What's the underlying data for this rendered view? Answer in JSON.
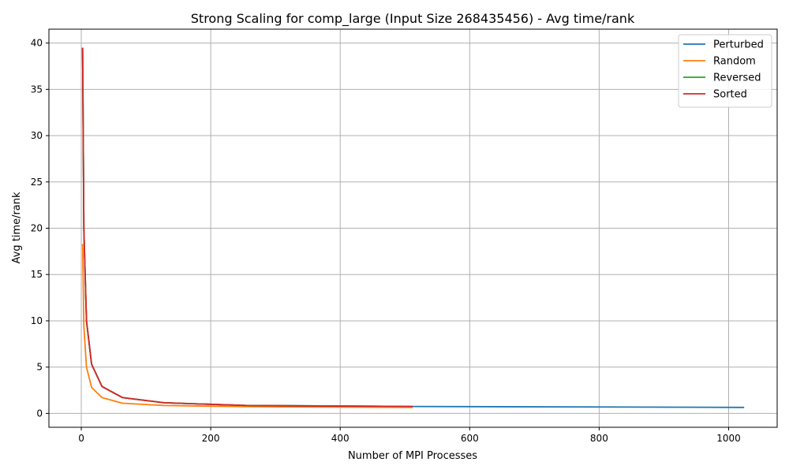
{
  "chart_data": {
    "type": "line",
    "title": "Strong Scaling for comp_large (Input Size 268435456) - Avg time/rank",
    "xlabel": "Number of MPI Processes",
    "ylabel": "Avg time/rank",
    "xlim": [
      -50,
      1075
    ],
    "ylim": [
      -1.5,
      41.5
    ],
    "xticks": [
      0,
      200,
      400,
      600,
      800,
      1000
    ],
    "yticks": [
      0,
      5,
      10,
      15,
      20,
      25,
      30,
      35,
      40
    ],
    "grid": true,
    "legend_position": "top-right",
    "series": [
      {
        "name": "Perturbed",
        "color": "#1f77b4",
        "x": [
          2,
          4,
          8,
          16,
          32,
          64,
          128,
          256,
          512,
          1024
        ],
        "y": [
          39.5,
          19.8,
          10.0,
          5.3,
          2.9,
          1.7,
          1.15,
          0.85,
          0.75,
          0.65
        ]
      },
      {
        "name": "Random",
        "color": "#ff7f0e",
        "x": [
          2,
          4,
          8,
          16,
          32,
          64,
          128,
          256,
          512
        ],
        "y": [
          18.3,
          9.4,
          5.0,
          2.8,
          1.7,
          1.1,
          0.85,
          0.72,
          0.65
        ]
      },
      {
        "name": "Reversed",
        "color": "#2ca02c",
        "x": [
          2,
          4,
          8,
          16,
          32,
          64,
          128,
          256,
          512
        ],
        "y": [
          39.5,
          19.8,
          10.0,
          5.3,
          2.9,
          1.7,
          1.15,
          0.85,
          0.75
        ]
      },
      {
        "name": "Sorted",
        "color": "#d62728",
        "x": [
          2,
          4,
          8,
          16,
          32,
          64,
          128,
          256,
          512
        ],
        "y": [
          39.5,
          19.8,
          10.0,
          5.3,
          2.9,
          1.7,
          1.15,
          0.85,
          0.75
        ]
      }
    ]
  }
}
